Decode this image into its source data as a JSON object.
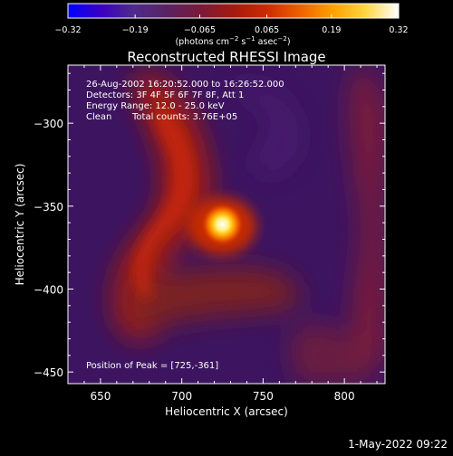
{
  "chart_data": {
    "type": "heatmap",
    "title": "Reconstructed RHESSI Image",
    "xlabel": "Heliocentric X (arcsec)",
    "ylabel": "Heliocentric Y (arcsec)",
    "xlim": [
      630,
      825
    ],
    "ylim": [
      -457,
      -265
    ],
    "x_ticks": [
      650,
      700,
      750,
      800
    ],
    "y_ticks": [
      -300,
      -350,
      -400,
      -450
    ],
    "x_tick_labels": [
      "650",
      "700",
      "750",
      "800"
    ],
    "y_tick_labels": [
      "−300",
      "−350",
      "−400",
      "−450"
    ],
    "colorbar": {
      "min": -0.32,
      "max": 0.32,
      "tick_values": [
        -0.32,
        -0.19,
        -0.065,
        0.065,
        0.19,
        0.32
      ],
      "tick_labels": [
        "−0.32",
        "−0.19",
        "−0.065",
        "0.065",
        "0.19",
        "0.32"
      ],
      "units_prefix": "(photons cm",
      "units_exp1": "−2",
      "units_mid1": " s",
      "units_exp2": "−1",
      "units_mid2": " asec",
      "units_exp3": "−2",
      "units_suffix": ")"
    },
    "annotations": {
      "time_range": "26-Aug-2002 16:20:52.000 to 16:26:52.000",
      "detectors": "Detectors: 3F 4F 5F 6F 7F 8F, Att 1",
      "energy_range": "Energy Range: 12.0 - 25.0 keV",
      "clean_label": "Clean",
      "total_counts": "Total counts: 3.76E+05",
      "peak_position": "Position of Peak = [725,-361]"
    },
    "peak": {
      "x": 725,
      "y": -361
    }
  },
  "footer": {
    "timestamp": "1-May-2022 09:22"
  },
  "colors": {
    "background": "#000000",
    "text": "#ffffff",
    "colormap": [
      "#0000ff",
      "#3b00c2",
      "#4e2b8a",
      "#5a2263",
      "#7a1a3a",
      "#a51a10",
      "#cc2a00",
      "#ee6000",
      "#ffa000",
      "#ffd640",
      "#ffffff"
    ]
  }
}
